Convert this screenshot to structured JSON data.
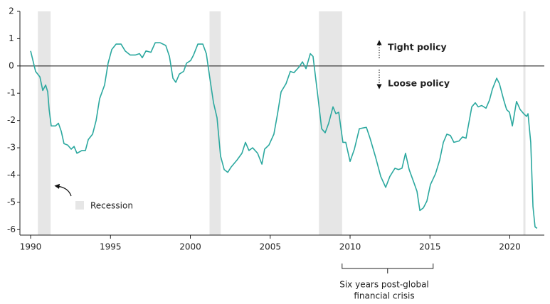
{
  "chart_data": {
    "type": "line",
    "x": [
      1990.0,
      1990.31,
      1990.58,
      1990.76,
      1990.94,
      1991.07,
      1991.16,
      1991.29,
      1991.56,
      1991.74,
      1991.92,
      1992.09,
      1992.32,
      1992.54,
      1992.72,
      1992.9,
      1993.21,
      1993.43,
      1993.61,
      1993.88,
      1994.1,
      1994.32,
      1994.63,
      1994.85,
      1995.08,
      1995.35,
      1995.66,
      1995.92,
      1996.24,
      1996.55,
      1996.82,
      1996.99,
      1997.22,
      1997.53,
      1997.8,
      1998.11,
      1998.46,
      1998.69,
      1998.91,
      1999.09,
      1999.31,
      1999.58,
      1999.76,
      2000.02,
      2000.2,
      2000.47,
      2000.78,
      2001.0,
      2001.22,
      2001.45,
      2001.67,
      2001.89,
      2002.12,
      2002.34,
      2002.56,
      2002.92,
      2003.23,
      2003.45,
      2003.67,
      2003.9,
      2004.21,
      2004.48,
      2004.65,
      2004.92,
      2005.23,
      2005.46,
      2005.68,
      2005.99,
      2006.26,
      2006.48,
      2006.79,
      2007.02,
      2007.24,
      2007.51,
      2007.68,
      2007.95,
      2008.22,
      2008.44,
      2008.66,
      2008.93,
      2009.11,
      2009.29,
      2009.55,
      2009.73,
      2010.0,
      2010.27,
      2010.58,
      2011.02,
      2011.25,
      2011.6,
      2011.92,
      2012.23,
      2012.49,
      2012.81,
      2013.03,
      2013.25,
      2013.47,
      2013.7,
      2014.01,
      2014.19,
      2014.37,
      2014.59,
      2014.81,
      2015.03,
      2015.35,
      2015.61,
      2015.84,
      2016.06,
      2016.28,
      2016.5,
      2016.82,
      2017.04,
      2017.26,
      2017.48,
      2017.62,
      2017.84,
      2018.02,
      2018.24,
      2018.51,
      2018.73,
      2018.91,
      2019.18,
      2019.35,
      2019.62,
      2019.8,
      2019.98,
      2020.16,
      2020.42,
      2020.65,
      2020.87,
      2021.05,
      2021.14,
      2021.31,
      2021.45,
      2021.58,
      2021.71
    ],
    "series": [
      {
        "color": "#2ba89f",
        "values": [
          0.55,
          -0.2,
          -0.4,
          -0.9,
          -0.7,
          -0.95,
          -1.6,
          -2.2,
          -2.2,
          -2.1,
          -2.4,
          -2.85,
          -2.9,
          -3.05,
          -2.95,
          -3.2,
          -3.1,
          -3.1,
          -2.7,
          -2.5,
          -2.0,
          -1.2,
          -0.7,
          0.1,
          0.6,
          0.8,
          0.8,
          0.55,
          0.4,
          0.4,
          0.45,
          0.3,
          0.55,
          0.5,
          0.85,
          0.85,
          0.75,
          0.35,
          -0.45,
          -0.6,
          -0.3,
          -0.2,
          0.1,
          0.2,
          0.4,
          0.8,
          0.8,
          0.45,
          -0.45,
          -1.35,
          -1.9,
          -3.3,
          -3.8,
          -3.9,
          -3.7,
          -3.45,
          -3.2,
          -2.8,
          -3.1,
          -3.0,
          -3.2,
          -3.6,
          -3.05,
          -2.9,
          -2.5,
          -1.75,
          -0.95,
          -0.65,
          -0.2,
          -0.25,
          -0.05,
          0.15,
          -0.1,
          0.45,
          0.35,
          -0.95,
          -2.3,
          -2.45,
          -2.1,
          -1.5,
          -1.75,
          -1.7,
          -2.8,
          -2.8,
          -3.5,
          -3.05,
          -2.3,
          -2.25,
          -2.65,
          -3.35,
          -4.05,
          -4.45,
          -4.05,
          -3.75,
          -3.8,
          -3.75,
          -3.2,
          -3.8,
          -4.3,
          -4.6,
          -5.3,
          -5.2,
          -4.95,
          -4.35,
          -3.95,
          -3.45,
          -2.8,
          -2.5,
          -2.55,
          -2.8,
          -2.75,
          -2.6,
          -2.65,
          -1.95,
          -1.5,
          -1.35,
          -1.5,
          -1.45,
          -1.55,
          -1.25,
          -0.85,
          -0.45,
          -0.65,
          -1.25,
          -1.6,
          -1.7,
          -2.2,
          -1.3,
          -1.6,
          -1.75,
          -1.85,
          -1.75,
          -2.8,
          -5.15,
          -5.9,
          -5.95
        ]
      }
    ],
    "recessions": [
      [
        1990.45,
        1991.25
      ],
      [
        2001.2,
        2001.9
      ],
      [
        2008.05,
        2009.5
      ],
      [
        2020.85,
        2020.98
      ]
    ],
    "recession_color": "#e6e6e6",
    "recession_label": "Recession",
    "tight_label": "Tight policy",
    "loose_label": "Loose policy",
    "bracket": {
      "range": [
        2009.5,
        2015.2
      ],
      "lines": [
        "Six years post-global",
        "financial crisis"
      ]
    },
    "xlim": [
      1989.33,
      2022.16
    ],
    "xticks": [
      1990,
      1995,
      2000,
      2005,
      2010,
      2015,
      2020
    ],
    "ylim": [
      -6.2,
      2
    ],
    "yticks": [
      2,
      1,
      0,
      -1,
      -2,
      -3,
      -4,
      -5,
      -6
    ]
  }
}
